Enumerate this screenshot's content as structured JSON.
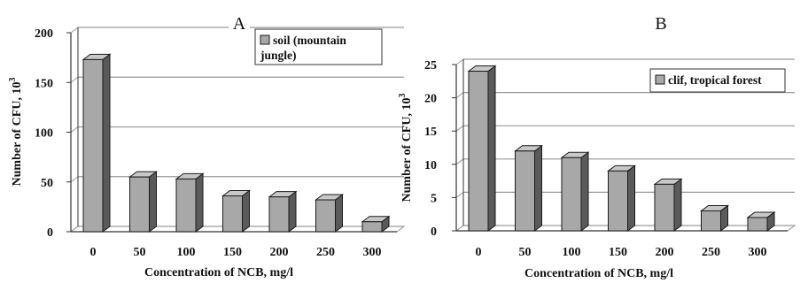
{
  "colors": {
    "bar_front": "#a8a8a8",
    "bar_top": "#c8c8c8",
    "bar_side": "#5a5a5a",
    "bar_outline": "#1a1a1a",
    "grid": "#9a9a9a",
    "axis": "#333333",
    "text": "#111111"
  },
  "chart_data": [
    {
      "panel_label": "A",
      "type": "bar",
      "style": "3d-column",
      "categories": [
        "0",
        "50",
        "100",
        "150",
        "200",
        "250",
        "300"
      ],
      "series": [
        {
          "name": "soil (mountain jungle)",
          "legend_lines": [
            "soil (mountain",
            "jungle)"
          ],
          "values": [
            173,
            55,
            53,
            36,
            35,
            32,
            10
          ]
        }
      ],
      "ylim": [
        0,
        200
      ],
      "yticks": [
        "0",
        "50",
        "100",
        "150",
        "200"
      ],
      "xlabel": "Concentration of NCB, mg/l",
      "ylabel": "Number of CFU, 10",
      "ylabel_sup": "3",
      "grid": true,
      "legend_position": "top-right"
    },
    {
      "panel_label": "B",
      "type": "bar",
      "style": "3d-column",
      "categories": [
        "0",
        "50",
        "100",
        "150",
        "200",
        "250",
        "300"
      ],
      "series": [
        {
          "name": "clif, tropical forest",
          "legend_lines": [
            "clif, tropical forest"
          ],
          "values": [
            24,
            12,
            11,
            9,
            7,
            3,
            2
          ]
        }
      ],
      "ylim": [
        0,
        25
      ],
      "yticks": [
        "0",
        "5",
        "10",
        "15",
        "20",
        "25"
      ],
      "xlabel": "Concentration of NCB, mg/l",
      "ylabel": "Number of CFU, 10",
      "ylabel_sup": "3",
      "grid": true,
      "legend_position": "top-right"
    }
  ]
}
